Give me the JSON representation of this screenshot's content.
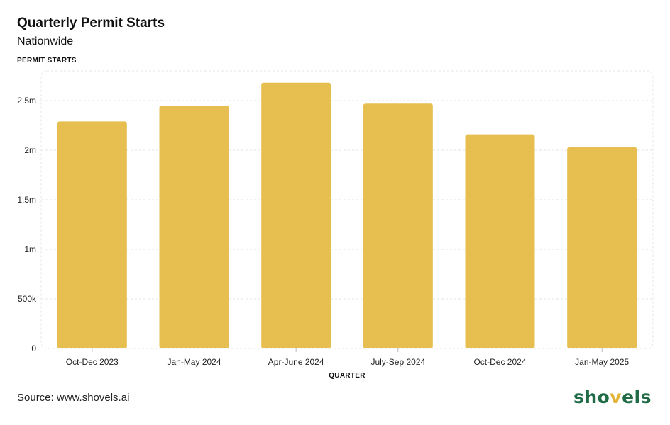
{
  "header": {
    "title": "Quarterly Permit Starts",
    "subtitle": "Nationwide"
  },
  "footer": {
    "source": "Source: www.shovels.ai",
    "logo_text": "shovels"
  },
  "colors": {
    "bar": "#E6BF50",
    "grid": "#e5e5e5",
    "logo": "#1f6b46",
    "logo_accent": "#e2b437"
  },
  "chart_data": {
    "type": "bar",
    "title": "Quarterly Permit Starts",
    "subtitle": "Nationwide",
    "xlabel": "QUARTER",
    "ylabel": "PERMIT STARTS",
    "categories": [
      "Oct-Dec 2023",
      "Jan-May 2024",
      "Apr-June 2024",
      "July-Sep 2024",
      "Oct-Dec 2024",
      "Jan-May 2025"
    ],
    "values": [
      2290000,
      2450000,
      2680000,
      2470000,
      2160000,
      2030000
    ],
    "ylim": [
      0,
      2800000
    ],
    "yticks": [
      0,
      500000,
      1000000,
      1500000,
      2000000,
      2500000
    ],
    "ytick_labels": [
      "0",
      "500k",
      "1m",
      "1.5m",
      "2m",
      "2.5m"
    ],
    "grid": true,
    "legend": "none"
  }
}
